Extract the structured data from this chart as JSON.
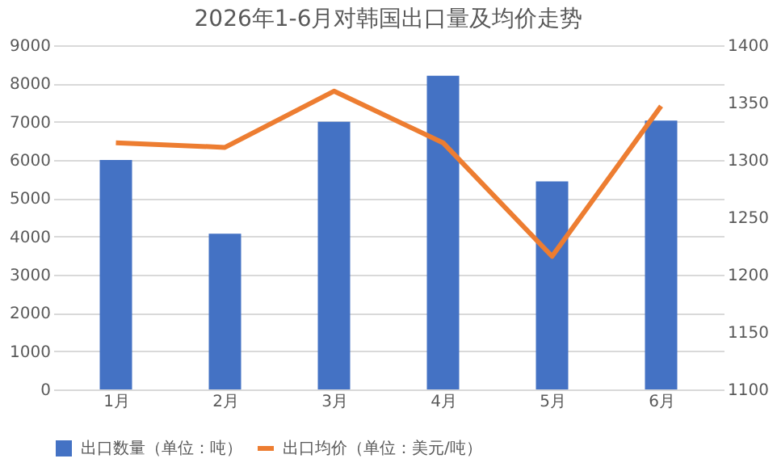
{
  "chart_data": {
    "type": "bar",
    "title": "2026年1-6月对韩国出口量及均价走势",
    "categories": [
      "1月",
      "2月",
      "3月",
      "4月",
      "5月",
      "6月"
    ],
    "series": [
      {
        "name": "出口数量（单位：吨）",
        "color": "#4472c4",
        "values": [
          6000,
          4070,
          7000,
          8200,
          5440,
          7030
        ]
      },
      {
        "name": "出口均价（单位：美元/吨）",
        "type": "line",
        "axis": "y2",
        "color": "#ed7d31",
        "values": [
          1315,
          1311,
          1360,
          1315,
          1216,
          1347
        ]
      }
    ],
    "ylim": [
      0,
      9000
    ],
    "yticks": [
      0,
      1000,
      2000,
      3000,
      4000,
      5000,
      6000,
      7000,
      8000,
      9000
    ],
    "y2lim": [
      1100,
      1400
    ],
    "y2ticks": [
      1100,
      1150,
      1200,
      1250,
      1300,
      1350,
      1400
    ],
    "grid": "y",
    "legend": "bottom",
    "marker": "none",
    "line_style": "solid"
  }
}
